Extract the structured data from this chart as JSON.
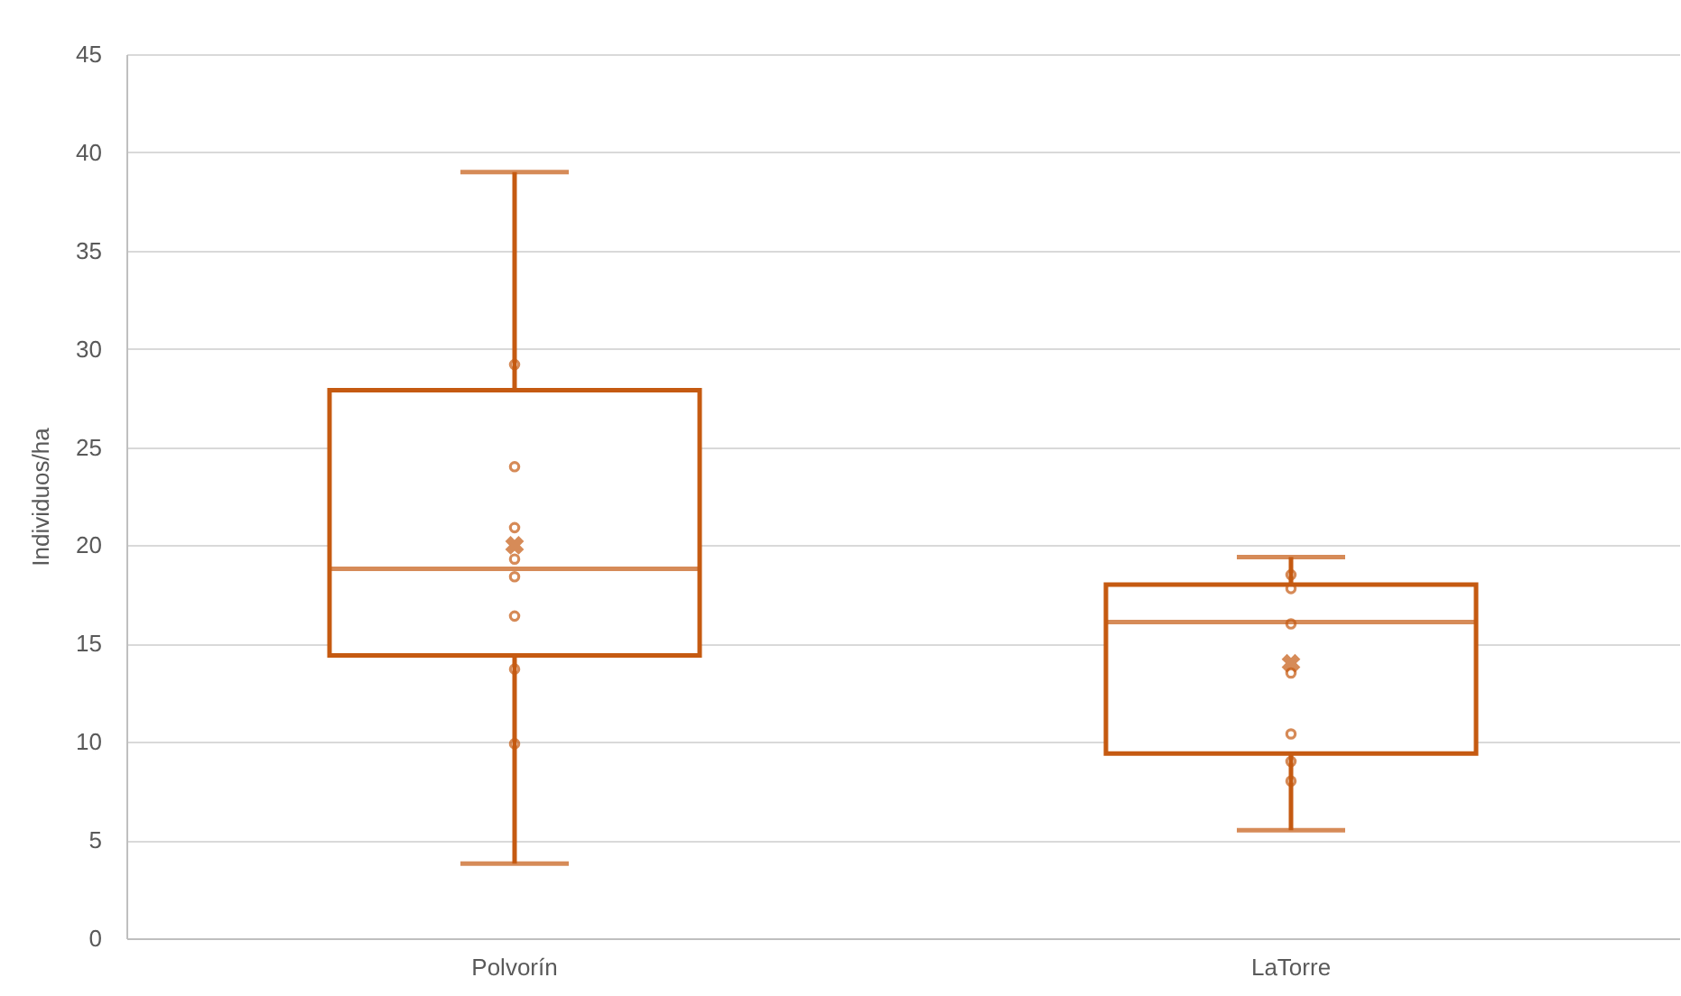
{
  "chart_data": {
    "type": "box",
    "ylabel": "Individuos/ha",
    "categories": [
      "Polvorín",
      "LaTorre"
    ],
    "boxes": [
      {
        "low": 3.8,
        "q1": 14.4,
        "median": 18.8,
        "q3": 27.9,
        "high": 39,
        "mean": 20
      },
      {
        "low": 5.5,
        "q1": 9.4,
        "median": 16.1,
        "q3": 18,
        "high": 19.4,
        "mean": 14
      }
    ],
    "colors": [
      "#c55a11",
      "#c55a11"
    ],
    "series": [
      {
        "type": "scatter",
        "color": "#c55a11",
        "x": [
          "Polvorín",
          "Polvorín",
          "Polvorín",
          "Polvorín",
          "Polvorín",
          "Polvorín",
          "Polvorín",
          "Polvorín",
          "LaTorre",
          "LaTorre",
          "LaTorre",
          "LaTorre",
          "LaTorre",
          "LaTorre",
          "LaTorre"
        ],
        "values": [
          29.2,
          24,
          20.9,
          19.3,
          18.4,
          16.4,
          13.7,
          9.9,
          18.5,
          17.8,
          16,
          13.5,
          10.4,
          9,
          8
        ]
      }
    ],
    "marker": "circle",
    "ylim": [
      0,
      45
    ],
    "yticks": [
      0,
      5,
      10,
      15,
      20,
      25,
      30,
      35,
      40,
      45
    ],
    "grid": "y"
  }
}
